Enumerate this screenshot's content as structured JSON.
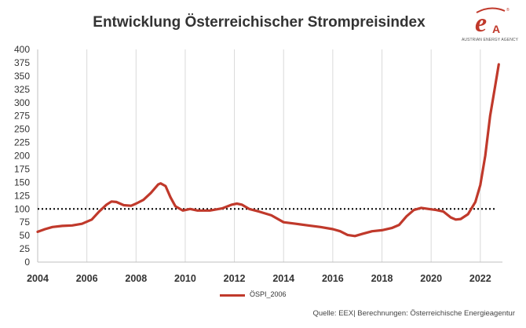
{
  "header": {
    "title": "Entwicklung Österreichischer Strompreisindex",
    "logo_text": "AUSTRIAN ENERGY AGENCY"
  },
  "footer": {
    "source": "Quelle: EEX| Berechnungen: Österreichische Energieagentur"
  },
  "colors": {
    "series": "#C0392B",
    "grid": "#D9D9D9",
    "reference_line": "#000000",
    "text": "#333333"
  },
  "chart_data": {
    "type": "line",
    "title": "Entwicklung Österreichischer Strompreisindex",
    "xlabel": "",
    "ylabel": "",
    "xlim": [
      2004,
      2022.9
    ],
    "ylim": [
      0,
      400
    ],
    "x_ticks": [
      "2004",
      "2006",
      "2008",
      "2010",
      "2012",
      "2014",
      "2016",
      "2018",
      "2020",
      "2022"
    ],
    "y_ticks": [
      "0",
      "25",
      "50",
      "75",
      "100",
      "125",
      "150",
      "175",
      "200",
      "225",
      "250",
      "275",
      "300",
      "325",
      "350",
      "375",
      "400"
    ],
    "grid": "vertical",
    "legend": "bottom-center",
    "reference_line": {
      "y": 100,
      "style": "dotted"
    },
    "series": [
      {
        "name": "ÖSPI_2006",
        "x": [
          2004.0,
          2004.3,
          2004.6,
          2005.0,
          2005.4,
          2005.8,
          2006.2,
          2006.5,
          2006.8,
          2007.0,
          2007.2,
          2007.5,
          2007.8,
          2008.0,
          2008.3,
          2008.6,
          2008.9,
          2009.0,
          2009.2,
          2009.4,
          2009.6,
          2009.9,
          2010.2,
          2010.5,
          2011.0,
          2011.5,
          2011.9,
          2012.1,
          2012.3,
          2012.6,
          2013.0,
          2013.5,
          2014.0,
          2014.5,
          2015.0,
          2015.5,
          2016.0,
          2016.3,
          2016.6,
          2016.9,
          2017.2,
          2017.6,
          2018.0,
          2018.4,
          2018.7,
          2019.0,
          2019.3,
          2019.6,
          2019.9,
          2020.2,
          2020.5,
          2020.8,
          2021.0,
          2021.2,
          2021.5,
          2021.8,
          2022.0,
          2022.2,
          2022.4,
          2022.6,
          2022.75
        ],
        "y": [
          57,
          62,
          66,
          68,
          69,
          72,
          80,
          95,
          108,
          114,
          113,
          107,
          106,
          110,
          117,
          130,
          146,
          148,
          143,
          122,
          105,
          97,
          100,
          97,
          97,
          101,
          108,
          110,
          108,
          100,
          95,
          88,
          75,
          72,
          69,
          66,
          62,
          58,
          51,
          49,
          53,
          58,
          60,
          64,
          70,
          86,
          98,
          102,
          100,
          98,
          95,
          84,
          80,
          81,
          90,
          113,
          145,
          200,
          275,
          330,
          372
        ]
      }
    ]
  }
}
